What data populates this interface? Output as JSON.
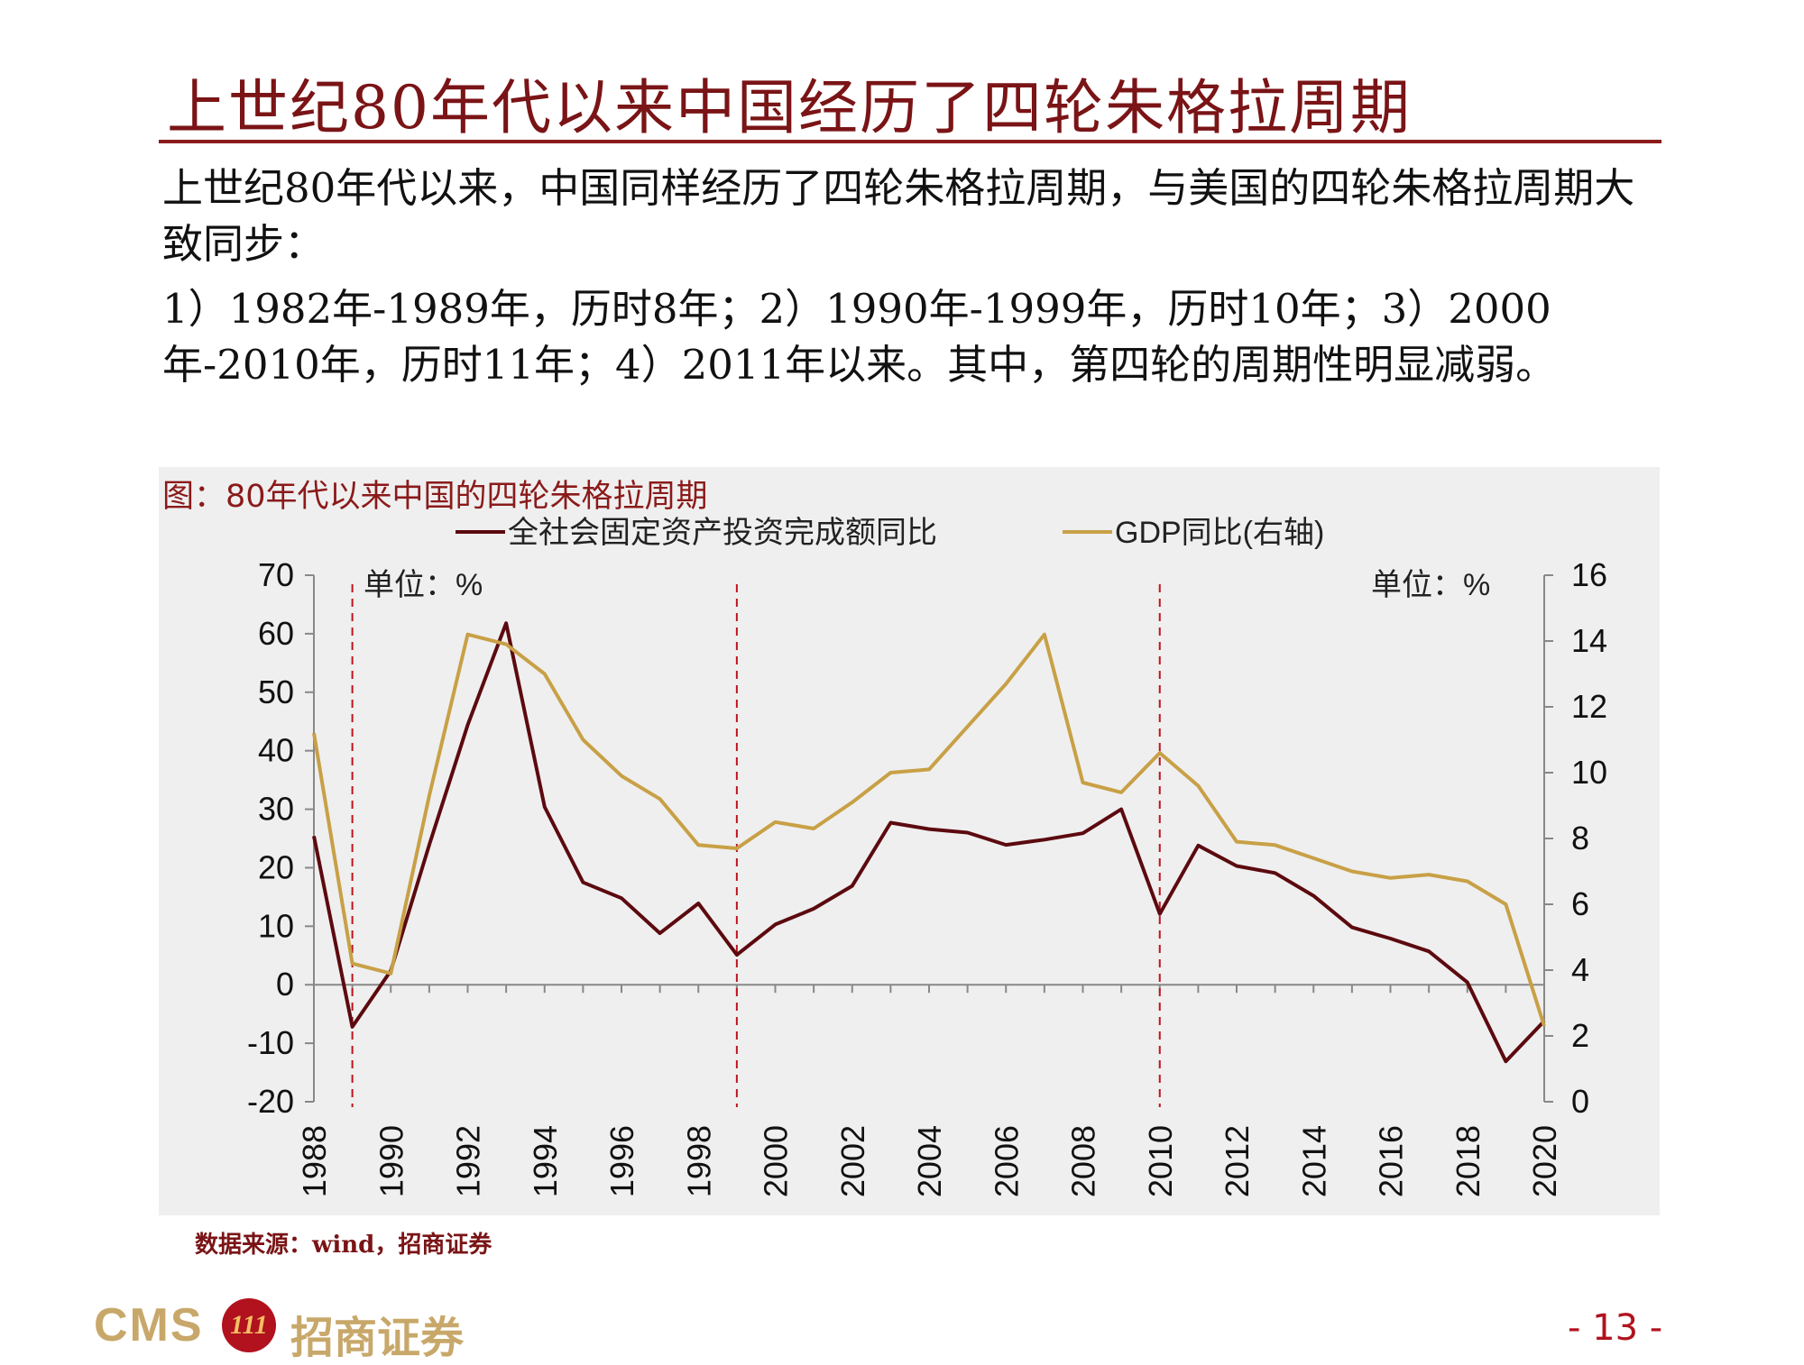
{
  "slide": {
    "title": "上世纪80年代以来中国经历了四轮朱格拉周期",
    "paragraph_1": "上世纪80年代以来，中国同样经历了四轮朱格拉周期，与美国的四轮朱格拉周期大致同步：",
    "paragraph_2": "1）1982年-1989年，历时8年；2）1990年-1999年，历时10年；3）2000年-2010年，历时11年；4）2011年以来。其中，第四轮的周期性明显减弱。",
    "chart_caption": "图：80年代以来中国的四轮朱格拉周期",
    "source": "数据来源：wind，招商证券",
    "logo_text_latin": "CMS",
    "logo_badge": "111",
    "logo_text_cn": "招商证券",
    "page_number": "- 13 -"
  },
  "chart_data": {
    "type": "line",
    "x": [
      1988,
      1989,
      1990,
      1991,
      1992,
      1993,
      1994,
      1995,
      1996,
      1997,
      1998,
      1999,
      2000,
      2001,
      2002,
      2003,
      2004,
      2005,
      2006,
      2007,
      2008,
      2009,
      2010,
      2011,
      2012,
      2013,
      2014,
      2015,
      2016,
      2017,
      2018,
      2019,
      2020
    ],
    "xticks": [
      "1988",
      "1990",
      "1992",
      "1994",
      "1996",
      "1998",
      "2000",
      "2002",
      "2004",
      "2006",
      "2008",
      "2010",
      "2012",
      "2014",
      "2016",
      "2018",
      "2020"
    ],
    "left_unit_label": "单位：%",
    "right_unit_label": "单位：%",
    "left_axis": {
      "ylim": [
        -20,
        70
      ],
      "ticks": [
        "70",
        "60",
        "50",
        "40",
        "30",
        "20",
        "10",
        "0",
        "-10",
        "-20"
      ]
    },
    "right_axis": {
      "ylim": [
        0,
        16
      ],
      "ticks": [
        "16",
        "14",
        "12",
        "10",
        "8",
        "6",
        "4",
        "2",
        "0"
      ]
    },
    "series": [
      {
        "name": "全社会固定资产投资完成额同比",
        "axis": "left",
        "color": "#5c0a0f",
        "values": [
          25.4,
          -7.2,
          2.4,
          23.9,
          44.4,
          61.8,
          30.4,
          17.5,
          14.8,
          8.8,
          13.9,
          5.1,
          10.3,
          13.0,
          16.9,
          27.7,
          26.6,
          26.0,
          23.9,
          24.8,
          25.9,
          30.0,
          12.1,
          23.8,
          20.3,
          19.1,
          15.2,
          9.8,
          7.9,
          5.7,
          0.4,
          -13.1,
          -6.2
        ]
      },
      {
        "name": "GDP同比(右轴)",
        "axis": "right",
        "color": "#c8a046",
        "values": [
          11.2,
          4.2,
          3.9,
          9.3,
          14.2,
          13.9,
          13.0,
          11.0,
          9.9,
          9.2,
          7.8,
          7.7,
          8.5,
          8.3,
          9.1,
          10.0,
          10.1,
          11.4,
          12.7,
          14.2,
          9.7,
          9.4,
          10.6,
          9.6,
          7.9,
          7.8,
          7.4,
          7.0,
          6.8,
          6.9,
          6.7,
          6.0,
          2.3
        ]
      }
    ],
    "cycle_markers": [
      1989,
      1999,
      2010
    ],
    "grid": false,
    "legend_position": "top-center"
  }
}
